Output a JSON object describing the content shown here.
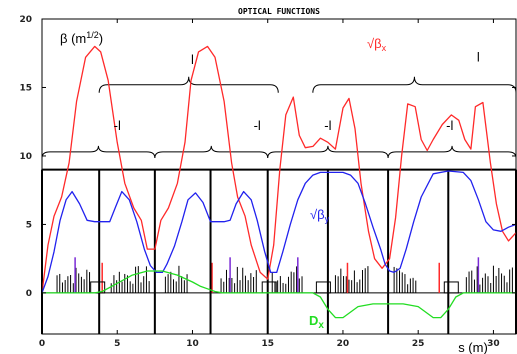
{
  "chart_data": {
    "type": "line",
    "title": "OPTICAL FUNCTIONS",
    "xlabel": "s (m)",
    "ylabel_prefix": "β (m",
    "ylabel_sup": "1/2",
    "ylabel_suffix": ")",
    "xlim": [
      0,
      31.5
    ],
    "ylim": [
      -3,
      20
    ],
    "xticks": [
      0,
      5,
      10,
      15,
      20,
      25,
      30
    ],
    "yticks": [
      0,
      5,
      10,
      15,
      20
    ],
    "grid": false,
    "colors": {
      "betax": "#ff2a2a",
      "betay": "#2222ee",
      "dx": "#22dd22",
      "lattice": "#000000"
    },
    "series_labels": {
      "betax_main": "√β",
      "betax_sub": "x",
      "betay_main": "√β",
      "betay_sub": "y",
      "dx_main": "D",
      "dx_sub": "x"
    },
    "series": [
      {
        "id": "betax",
        "x": [
          0,
          0.4,
          0.8,
          1.3,
          1.8,
          2.3,
          2.9,
          3.5,
          3.9,
          4.4,
          5.0,
          5.5,
          6.1,
          6.6,
          7.0,
          7.5,
          7.9,
          8.4,
          9.0,
          9.5,
          9.9,
          10.4,
          11.0,
          11.5,
          12.1,
          12.6,
          13.0,
          13.5,
          13.9,
          14.5,
          15.0,
          15.4,
          15.8,
          16.2,
          16.7,
          17.1,
          17.5,
          18.0,
          18.5,
          19.0,
          19.5,
          20.0,
          20.4,
          20.8,
          21.2,
          21.7,
          22.1,
          22.6,
          23.1,
          23.5,
          23.9,
          24.3,
          24.8,
          25.2,
          25.6,
          26.0,
          26.6,
          27.2,
          27.7,
          28.1,
          28.5,
          28.8,
          29.3,
          29.8,
          30.2,
          30.6,
          31.0,
          31.5
        ],
        "y": [
          0,
          3.5,
          5.6,
          7.0,
          9.5,
          14.0,
          17.2,
          18.0,
          17.6,
          15.5,
          11.0,
          8.0,
          6.2,
          5.3,
          3.2,
          3.2,
          5.3,
          6.2,
          8.0,
          11.0,
          15.5,
          17.6,
          18.0,
          17.2,
          14.0,
          9.5,
          7.0,
          5.6,
          3.5,
          1.5,
          1.0,
          3.5,
          9.0,
          13.0,
          14.3,
          11.5,
          10.6,
          10.7,
          11.3,
          11.0,
          10.5,
          13.5,
          14.2,
          12.0,
          8.0,
          4.5,
          2.5,
          1.8,
          2.5,
          5.5,
          10.0,
          13.8,
          13.6,
          11.2,
          10.4,
          11.2,
          12.3,
          13.0,
          12.6,
          11.2,
          10.5,
          13.6,
          13.9,
          9.5,
          6.5,
          4.5,
          3.8,
          4.4
        ]
      },
      {
        "id": "betay",
        "x": [
          0,
          0.4,
          0.8,
          1.2,
          1.6,
          2.0,
          2.5,
          3.0,
          3.5,
          4.0,
          4.5,
          4.9,
          5.3,
          5.8,
          6.3,
          6.8,
          7.2,
          7.6,
          8.0,
          8.3,
          8.8,
          9.3,
          9.7,
          10.2,
          10.7,
          11.2,
          11.7,
          12.1,
          12.5,
          12.9,
          13.4,
          13.9,
          14.3,
          14.8,
          15.2,
          15.6,
          16.0,
          16.5,
          17.0,
          17.5,
          18.0,
          18.5,
          19.0,
          19.5,
          20.0,
          20.5,
          21.0,
          21.5,
          22.0,
          22.5,
          22.8,
          23.1,
          23.4,
          23.8,
          24.2,
          24.7,
          25.2,
          26.0,
          27.0,
          28.0,
          28.5,
          29.0,
          29.5,
          30.0,
          30.5,
          31.0,
          31.5
        ],
        "y": [
          0,
          1.2,
          3.0,
          5.3,
          6.8,
          7.4,
          6.5,
          5.3,
          5.2,
          5.2,
          5.2,
          6.3,
          7.4,
          6.8,
          5.2,
          3.2,
          2.0,
          1.5,
          1.5,
          2.1,
          3.4,
          5.2,
          6.8,
          7.3,
          6.6,
          5.2,
          5.2,
          5.2,
          5.3,
          6.5,
          7.4,
          6.8,
          5.3,
          3.0,
          1.5,
          1.5,
          3.0,
          5.0,
          6.8,
          8.0,
          8.6,
          8.8,
          8.8,
          8.8,
          8.8,
          8.6,
          8.0,
          6.5,
          4.8,
          3.2,
          2.1,
          1.6,
          1.5,
          1.8,
          3.2,
          5.2,
          7.0,
          8.7,
          8.9,
          8.8,
          8.2,
          6.8,
          5.2,
          4.6,
          4.5,
          4.8,
          5.0
        ]
      },
      {
        "id": "dx",
        "x": [
          0,
          3.0,
          3.5,
          4.0,
          4.5,
          5.0,
          6.0,
          7.0,
          8.0,
          9.0,
          10.0,
          10.5,
          11.0,
          11.5,
          12.0,
          13.5,
          15.0,
          15.5,
          16.0,
          17.0,
          18.0,
          18.5,
          19.0,
          19.5,
          20.0,
          20.5,
          21.0,
          22.0,
          24.0,
          25.0,
          25.5,
          26.0,
          26.5,
          27.0,
          27.5,
          28.0,
          29.0,
          30.0,
          31.5
        ],
        "y": [
          0,
          0,
          0,
          0.1,
          0.4,
          0.7,
          1.3,
          1.6,
          1.6,
          1.3,
          0.8,
          0.5,
          0.3,
          0.1,
          0,
          0,
          0,
          0,
          0,
          0,
          0,
          -0.3,
          -1.2,
          -1.8,
          -1.8,
          -1.4,
          -1.0,
          -0.8,
          -0.8,
          -1.0,
          -1.4,
          -1.8,
          -1.8,
          -1.2,
          -0.3,
          0,
          0,
          0,
          0
        ]
      }
    ],
    "annotations": [
      {
        "text": "l",
        "x": 10.0,
        "y": 16.7
      },
      {
        "text": "l",
        "x": 24.2,
        "y": 16.9
      },
      {
        "text": "-l",
        "x": 4.5,
        "y": 11.9
      },
      {
        "text": "-l",
        "x": 14.2,
        "y": 11.9
      },
      {
        "text": "-l",
        "x": 22.8,
        "y": 11.9
      },
      {
        "text": "-l",
        "x": 33.0,
        "y": 11.9
      }
    ]
  }
}
